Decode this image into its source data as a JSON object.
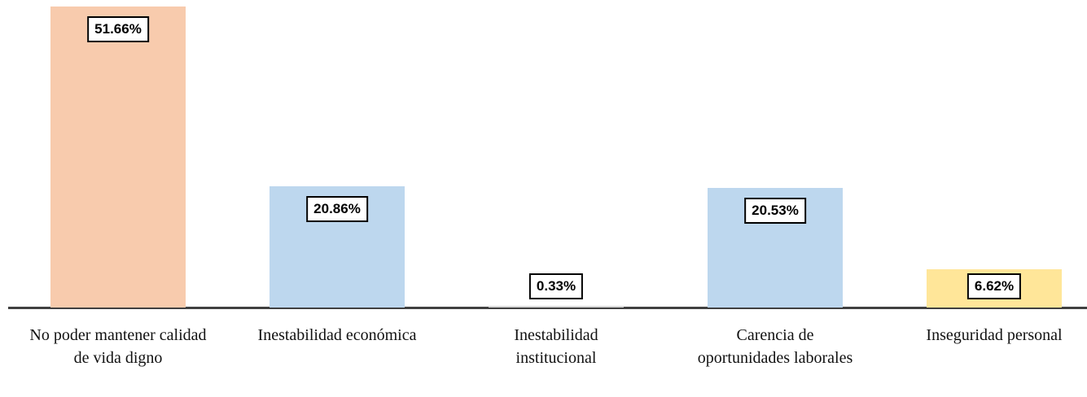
{
  "chart_data": {
    "type": "bar",
    "categories": [
      "No poder mantener calidad de vida digno",
      "Inestabilidad económica",
      "Inestabilidad institucional",
      "Carencia de oportunidades laborales",
      "Inseguridad personal"
    ],
    "values": [
      51.66,
      20.86,
      0.33,
      20.53,
      6.62
    ],
    "value_labels": [
      "51.66%",
      "20.86%",
      "0.33%",
      "20.53%",
      "6.62%"
    ],
    "colors": [
      "#f8cbad",
      "#bdd7ee",
      "#d9d9d9",
      "#bdd7ee",
      "#ffe699"
    ]
  }
}
